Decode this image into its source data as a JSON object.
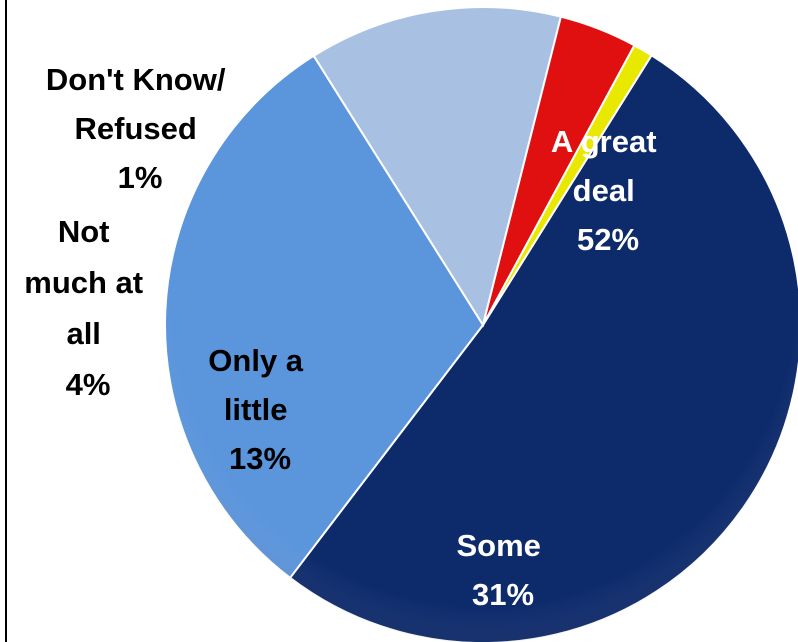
{
  "chart_data": {
    "type": "pie",
    "title": "",
    "start_angle_deg": -58,
    "slices": [
      {
        "label_lines": [
          "A great",
          "deal"
        ],
        "percent_label": "52%",
        "value": 52,
        "color": "#0d2a6b",
        "label_color": "#ffffff"
      },
      {
        "label_lines": [
          "Some"
        ],
        "percent_label": "31%",
        "value": 31,
        "color": "#5b95dc",
        "label_color": "#ffffff"
      },
      {
        "label_lines": [
          "Only a",
          "little"
        ],
        "percent_label": "13%",
        "value": 13,
        "color": "#a8c1e3",
        "label_color": "#000000"
      },
      {
        "label_lines": [
          "Not",
          "much at",
          "all"
        ],
        "percent_label": "4%",
        "value": 4,
        "color": "#e01010",
        "label_color": "#000000"
      },
      {
        "label_lines": [
          "Don't Know/",
          "Refused"
        ],
        "percent_label": "1%",
        "value": 1,
        "color": "#e8e800",
        "label_color": "#000000"
      }
    ]
  }
}
